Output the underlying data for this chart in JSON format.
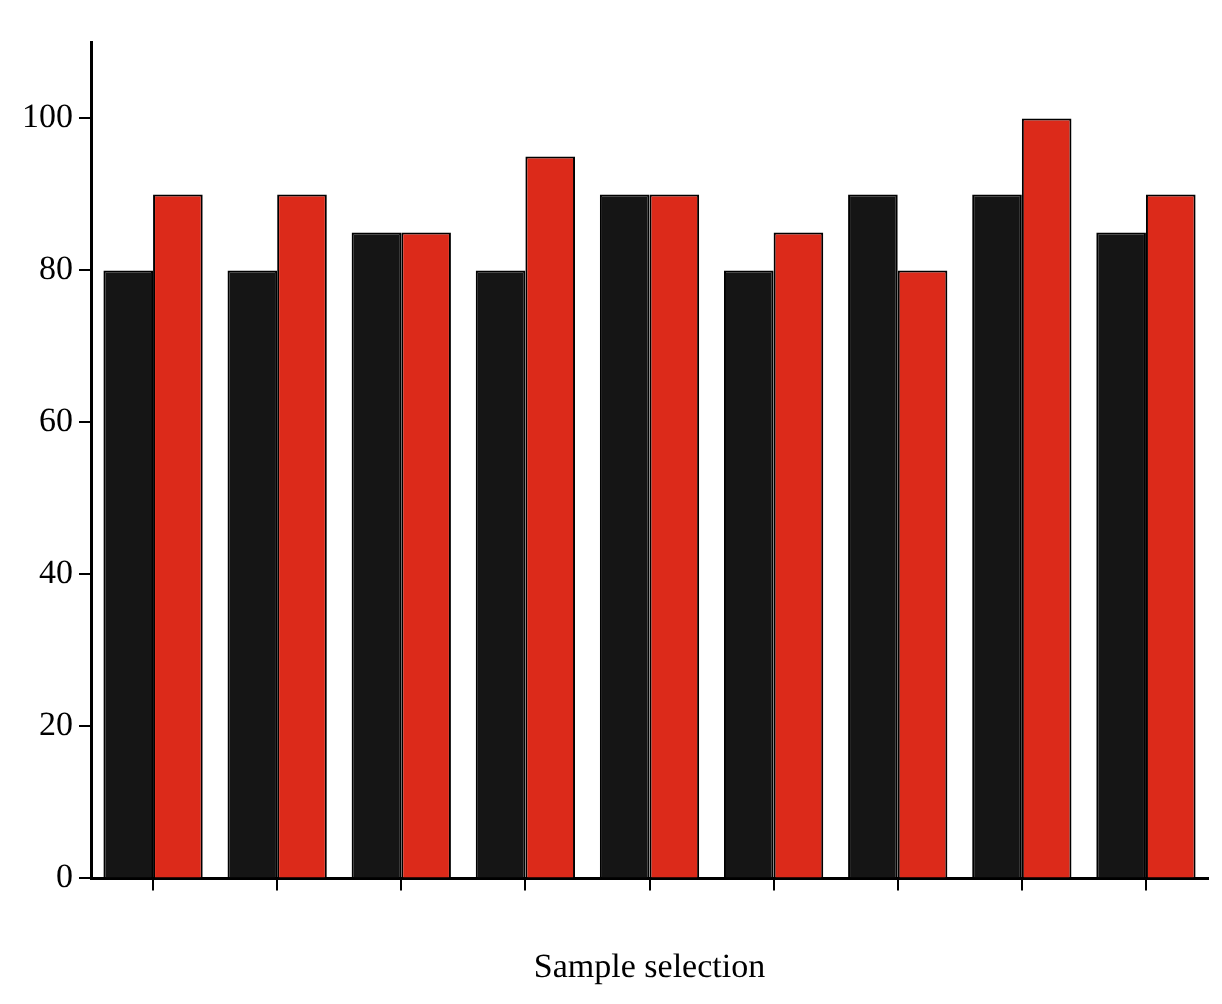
{
  "chart_data": {
    "type": "bar",
    "xlabel": "Sample selection",
    "categories": [
      null,
      null,
      null,
      null,
      null,
      null,
      null,
      null,
      null
    ],
    "series": [
      {
        "color": "#151515",
        "values": [
          80,
          80,
          85,
          80,
          90,
          80,
          90,
          90,
          85
        ]
      },
      {
        "color": "#dc2a1a",
        "values": [
          90,
          90,
          85,
          95,
          90,
          85,
          80,
          100,
          90
        ]
      }
    ],
    "ylim": [
      0,
      110
    ],
    "yticks": [
      0,
      20,
      40,
      60,
      80,
      100
    ],
    "legend": false
  }
}
